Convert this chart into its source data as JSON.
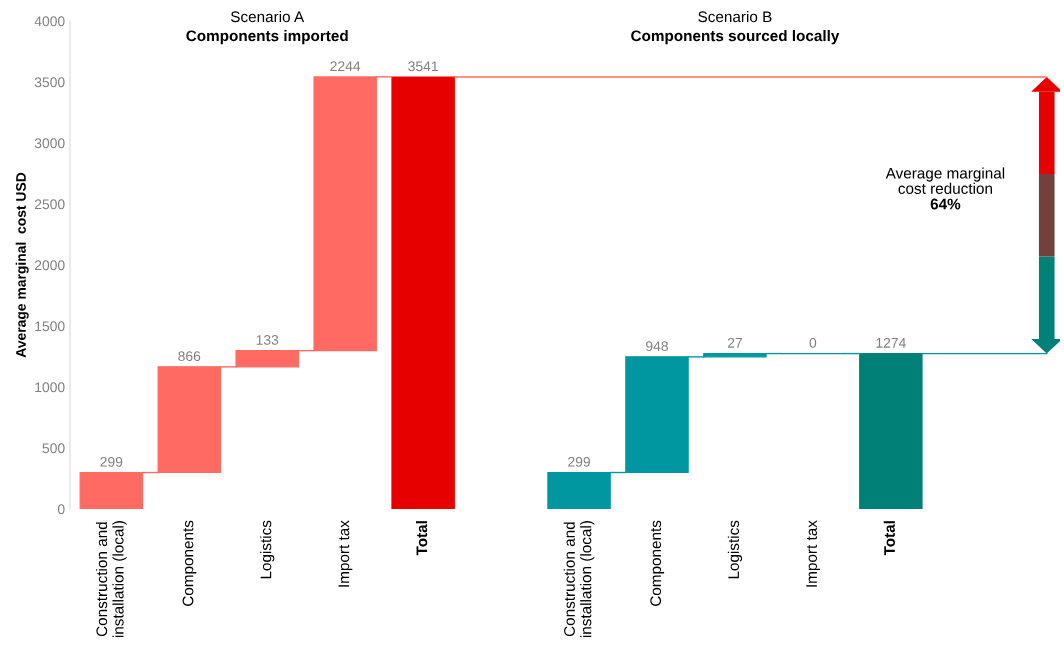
{
  "chart_data": {
    "type": "bar",
    "categories": [
      "Construction and\ninstallation (local)",
      "Components",
      "Logistics",
      "Import tax",
      "Total",
      null,
      "Construction and\ninstallation (local)",
      "Components",
      "Logistics",
      "Import tax",
      "Total"
    ],
    "values": [
      299,
      866,
      133,
      2244,
      3541,
      null,
      299,
      948,
      27,
      0,
      1274
    ],
    "base": [
      0,
      299,
      1165,
      1298,
      0,
      null,
      0,
      299,
      1247,
      1274,
      0
    ],
    "colors": [
      "#ff6b63",
      "#ff6b63",
      "#ff6b63",
      "#ff6b63",
      "#e60000",
      null,
      "#0097a0",
      "#0097a0",
      "#0097a0",
      "#0097a0",
      "#008077"
    ],
    "data_labels": true,
    "ylabel": "Average marginal  cost USD",
    "ylim": [
      0,
      4000
    ],
    "yticks": [
      0,
      500,
      1000,
      1500,
      2000,
      2500,
      3000,
      3500,
      4000
    ],
    "grid": false,
    "legend": false,
    "annotations": [
      "Scenario A",
      "Components imported",
      "Scenario B",
      "Components sourced locally",
      "Average marginal\ncost reduction",
      "64%"
    ]
  }
}
